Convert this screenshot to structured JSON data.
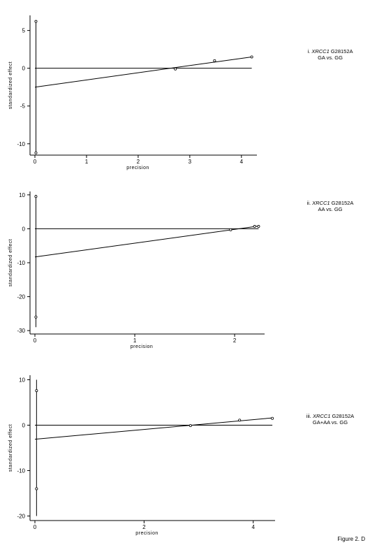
{
  "figure_label": "Figure 2. D",
  "chart_data": [
    {
      "type": "scatter",
      "xlabel": "precision",
      "ylabel": "standardized effect",
      "annotation": {
        "prefix": "i. ",
        "gene": "XRCC1",
        "suffix": " G28152A",
        "line2": "GA vs. GG"
      },
      "xlim": [
        0,
        4.3
      ],
      "ylim": [
        -11.5,
        7.0
      ],
      "xticks": [
        0,
        1,
        2,
        3,
        4
      ],
      "yticks": [
        -10,
        -5,
        0,
        5
      ],
      "points": [
        {
          "x": 0.02,
          "y": 6.2
        },
        {
          "x": 0.02,
          "y": -11.2
        },
        {
          "x": 2.72,
          "y": -0.1
        },
        {
          "x": 3.48,
          "y": 1.0
        },
        {
          "x": 4.2,
          "y": 1.5
        }
      ],
      "ci_bar": {
        "x": 0.02,
        "y1": -11.2,
        "y2": 6.2
      },
      "zero_line": {
        "y": 0,
        "x1": 0,
        "x2": 4.2
      },
      "regression": {
        "x1": 0,
        "y1": -2.5,
        "x2": 4.2,
        "y2": 1.5
      }
    },
    {
      "type": "scatter",
      "xlabel": "precision",
      "ylabel": "standardized effect",
      "annotation": {
        "prefix": "ii. ",
        "gene": "XRCC1",
        "suffix": " G28152A",
        "line2": "AA vs. GG"
      },
      "xlim": [
        0,
        2.3
      ],
      "ylim": [
        -31,
        11
      ],
      "xticks": [
        0,
        1,
        2
      ],
      "yticks": [
        -30,
        -20,
        -10,
        0,
        10
      ],
      "points": [
        {
          "x": 0.01,
          "y": 9.5
        },
        {
          "x": 0.01,
          "y": -26
        },
        {
          "x": 1.96,
          "y": -0.3
        },
        {
          "x": 2.2,
          "y": 0.7
        },
        {
          "x": 2.24,
          "y": 0.7
        }
      ],
      "ci_bar": {
        "x": 0.01,
        "y1": -29,
        "y2": 10
      },
      "zero_line": {
        "y": 0,
        "x1": 0,
        "x2": 2.24
      },
      "regression": {
        "x1": 0,
        "y1": -8.3,
        "x2": 2.24,
        "y2": 0.8
      }
    },
    {
      "type": "scatter",
      "xlabel": "precision",
      "ylabel": "standardized effect",
      "annotation": {
        "prefix": "iii. ",
        "gene": "XRCC1",
        "suffix": " G28152A",
        "line2": "GA+AA vs. GG"
      },
      "xlim": [
        0,
        4.4
      ],
      "ylim": [
        -21,
        11
      ],
      "xticks": [
        0,
        2,
        4
      ],
      "yticks": [
        -20,
        -10,
        0,
        10
      ],
      "points": [
        {
          "x": 0.03,
          "y": 7.6
        },
        {
          "x": 0.03,
          "y": -14
        },
        {
          "x": 2.85,
          "y": -0.1
        },
        {
          "x": 3.75,
          "y": 1.1
        },
        {
          "x": 4.35,
          "y": 1.5
        }
      ],
      "ci_bar": {
        "x": 0.03,
        "y1": -20,
        "y2": 10
      },
      "zero_line": {
        "y": 0,
        "x1": 0,
        "x2": 4.35
      },
      "regression": {
        "x1": 0,
        "y1": -3.1,
        "x2": 4.35,
        "y2": 1.6
      }
    }
  ]
}
